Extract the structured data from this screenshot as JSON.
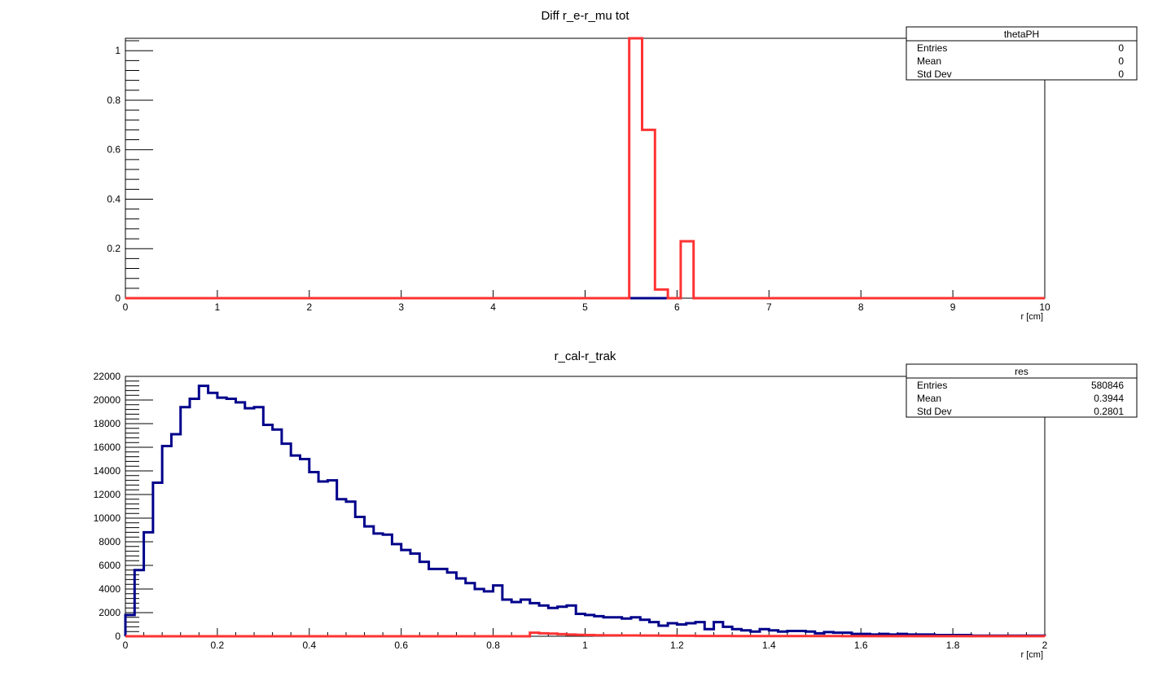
{
  "chart_data": [
    {
      "type": "histogram",
      "title": "Diff r_e-r_mu tot",
      "xlabel": "r [cm]",
      "ylabel": "",
      "xlim": [
        0,
        10
      ],
      "ylim": [
        0,
        1.05
      ],
      "xticks": [
        0,
        1,
        2,
        3,
        4,
        5,
        6,
        7,
        8,
        9,
        10
      ],
      "xtick_labels": [
        "0",
        "1",
        "2",
        "3",
        "4",
        "5",
        "6",
        "7",
        "8",
        "9",
        "10"
      ],
      "yticks": [
        0,
        0.2,
        0.4,
        0.6,
        0.8,
        1
      ],
      "ytick_labels": [
        "0",
        "0.2",
        "0.4",
        "0.6",
        "0.8",
        "1"
      ],
      "x_minor_per_major": 0,
      "y_minor_per_major": 4,
      "series": [
        {
          "color": "#00008b",
          "bin_width": 0.05,
          "x_start": 0,
          "values": [
            0,
            0,
            0,
            0,
            0,
            0,
            0,
            0,
            0,
            0,
            0,
            0,
            0,
            0,
            0,
            0,
            0,
            0,
            0,
            0,
            0,
            0,
            0,
            0,
            0,
            0,
            0,
            0,
            0,
            0,
            0,
            0,
            0,
            0,
            0,
            0,
            0,
            0,
            0,
            0,
            0,
            0,
            0,
            0,
            0,
            0,
            0,
            0,
            0,
            0,
            0,
            0,
            0,
            0,
            0,
            0,
            0,
            0,
            0,
            0,
            0,
            0,
            0,
            0,
            0,
            0,
            0,
            0,
            0,
            0,
            0,
            0,
            0,
            0,
            0,
            0,
            0,
            0,
            0,
            0,
            0,
            0,
            0,
            0,
            0,
            0,
            0,
            0,
            0,
            0,
            0,
            0,
            0,
            0,
            0,
            0,
            0,
            0,
            0,
            0,
            0,
            0,
            0,
            0,
            0,
            0,
            0,
            0,
            0,
            0,
            0,
            0,
            0,
            0,
            0,
            0,
            0,
            0
          ]
        },
        {
          "color": "#ff3333",
          "bin_width": 0.14,
          "x_start": 5.48,
          "lead_in": 0,
          "values": [
            1.05,
            0.68,
            0.035,
            0,
            0.23,
            0
          ],
          "tail_to": 10
        }
      ],
      "stats": {
        "title": "thetaPH",
        "rows": [
          {
            "label": "Entries",
            "value": "0"
          },
          {
            "label": "Mean",
            "value": "0"
          },
          {
            "label": "Std Dev",
            "value": "0"
          }
        ]
      }
    },
    {
      "type": "histogram",
      "title": "r_cal-r_trak",
      "xlabel": "r [cm]",
      "ylabel": "",
      "xlim": [
        0,
        2
      ],
      "ylim": [
        0,
        22000
      ],
      "xticks": [
        0,
        0.2,
        0.4,
        0.6,
        0.8,
        1,
        1.2,
        1.4,
        1.6,
        1.8,
        2
      ],
      "xtick_labels": [
        "0",
        "0.2",
        "0.4",
        "0.6",
        "0.8",
        "1",
        "1.2",
        "1.4",
        "1.6",
        "1.8",
        "2"
      ],
      "yticks": [
        0,
        2000,
        4000,
        6000,
        8000,
        10000,
        12000,
        14000,
        16000,
        18000,
        20000,
        22000
      ],
      "ytick_labels": [
        "0",
        "2000",
        "4000",
        "6000",
        "8000",
        "10000",
        "12000",
        "14000",
        "16000",
        "18000",
        "20000",
        "22000"
      ],
      "x_minor_per_major": 4,
      "y_minor_per_major": 4,
      "series": [
        {
          "color": "#00008b",
          "bin_width": 0.02,
          "x_start": 0,
          "values": [
            1800,
            5600,
            8800,
            13000,
            16100,
            17100,
            19400,
            20100,
            21200,
            20600,
            20200,
            20100,
            19800,
            19300,
            19400,
            17900,
            17500,
            16300,
            15300,
            15000,
            13900,
            13100,
            13200,
            11600,
            11400,
            10100,
            9300,
            8700,
            8600,
            7800,
            7300,
            7000,
            6300,
            5700,
            5700,
            5400,
            4900,
            4500,
            4000,
            3800,
            4300,
            3100,
            2900,
            3100,
            2800,
            2600,
            2400,
            2500,
            2600,
            1900,
            1800,
            1700,
            1600,
            1600,
            1500,
            1600,
            1400,
            1200,
            900,
            1100,
            1000,
            1100,
            1200,
            600,
            1200,
            800,
            600,
            500,
            400,
            600,
            500,
            400,
            450,
            450,
            400,
            250,
            350,
            300,
            300,
            200,
            200,
            150,
            200,
            150,
            200,
            150,
            150,
            150,
            100,
            100,
            100,
            100,
            50,
            50,
            50,
            50,
            50,
            50,
            50,
            50
          ]
        },
        {
          "color": "#ff3333",
          "bin_width": 0.02,
          "x_start": 0,
          "values": [
            0,
            0,
            0,
            0,
            0,
            0,
            0,
            0,
            0,
            0,
            0,
            0,
            0,
            0,
            0,
            0,
            0,
            0,
            0,
            0,
            0,
            0,
            0,
            0,
            0,
            0,
            0,
            0,
            0,
            0,
            0,
            0,
            0,
            0,
            0,
            0,
            0,
            0,
            0,
            0,
            0,
            0,
            0,
            0,
            300,
            250,
            220,
            180,
            150,
            120,
            100,
            90,
            80,
            80,
            70,
            70,
            60,
            60,
            50,
            50,
            40,
            40,
            30,
            30,
            30,
            30,
            20,
            20,
            20,
            20,
            20,
            20,
            20,
            20,
            20,
            20,
            20,
            20,
            10,
            10,
            10,
            10,
            10,
            10,
            10,
            10,
            10,
            10,
            10,
            10,
            10,
            10,
            10,
            10,
            10,
            10,
            10,
            10,
            10,
            10
          ]
        }
      ],
      "stats": {
        "title": "res",
        "rows": [
          {
            "label": "Entries",
            "value": "580846"
          },
          {
            "label": "Mean",
            "value": "0.3944"
          },
          {
            "label": "Std Dev",
            "value": "0.2801"
          }
        ]
      }
    }
  ]
}
